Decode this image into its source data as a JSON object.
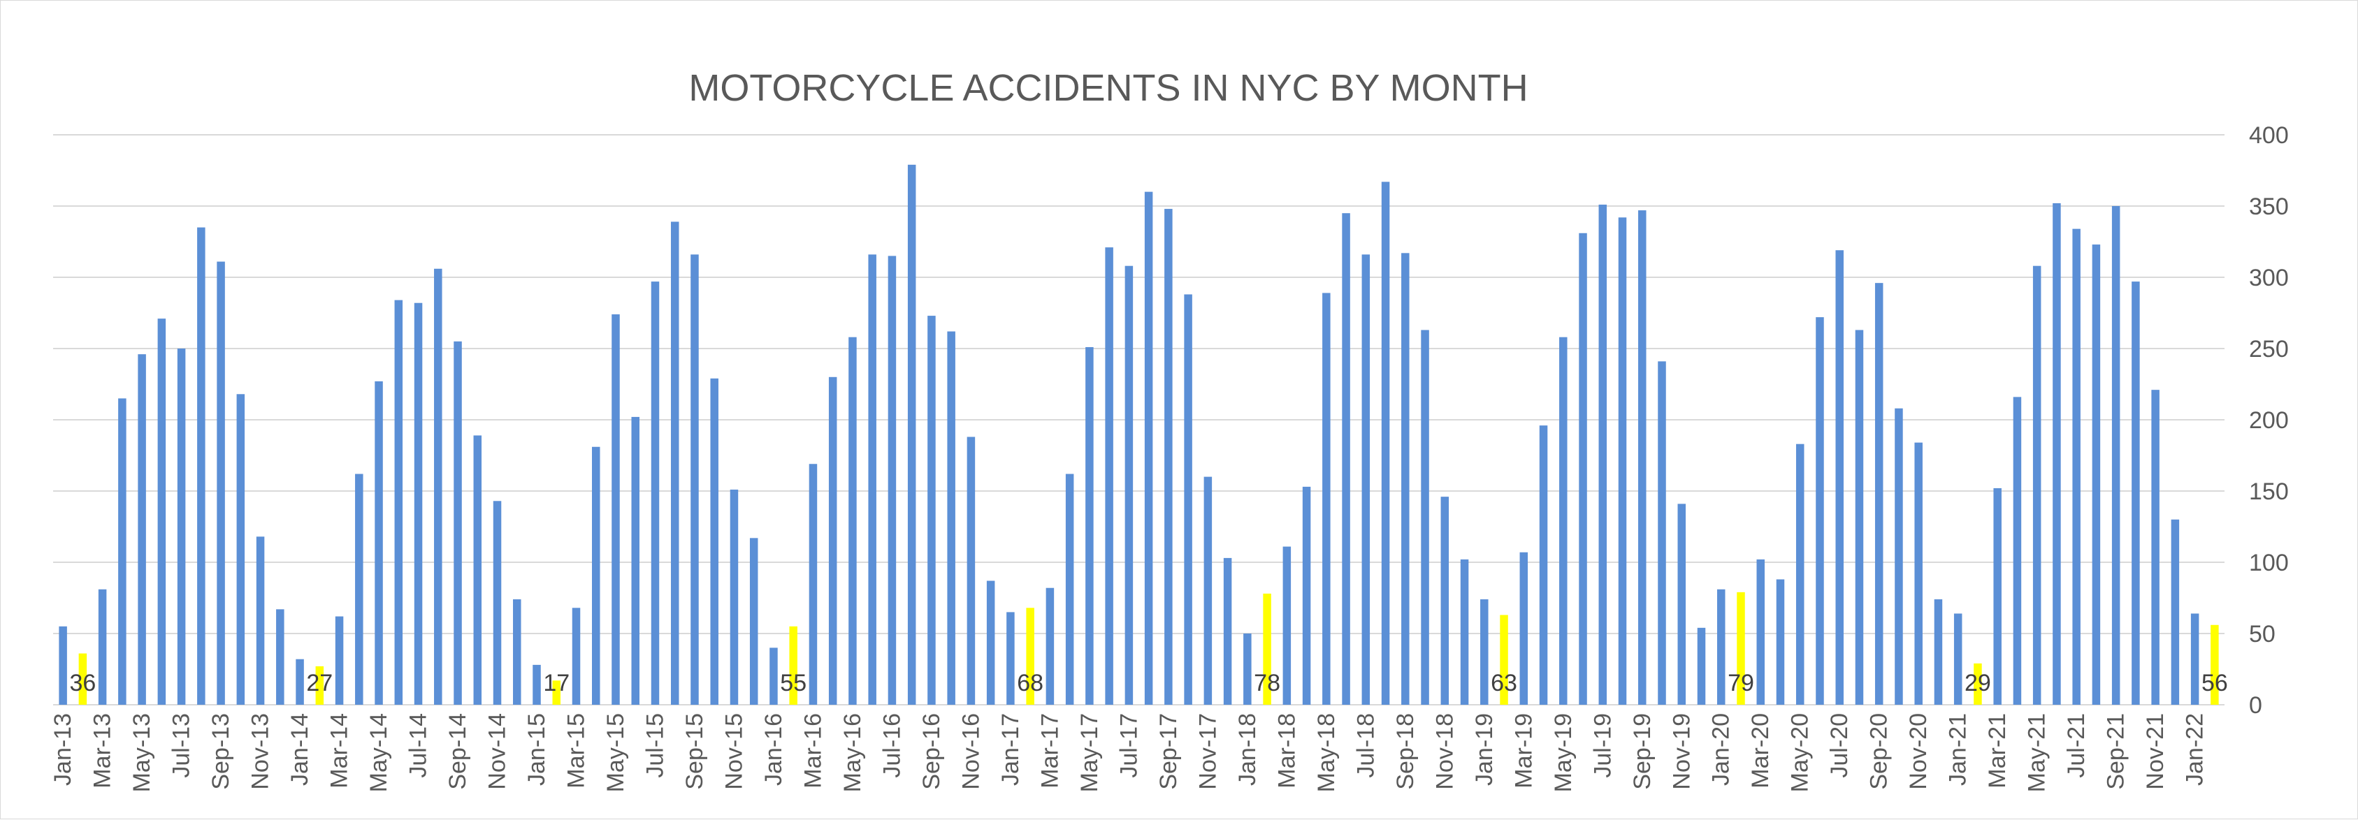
{
  "chart_data": {
    "type": "bar",
    "title": "MOTORCYCLE ACCIDENTS IN NYC BY MONTH",
    "xlabel": "",
    "ylabel": "",
    "ylim": [
      0,
      400
    ],
    "y_ticks": [
      0,
      50,
      100,
      150,
      200,
      250,
      300,
      350,
      400
    ],
    "y_axis_side": "right",
    "grid": true,
    "legend": "none",
    "colors": {
      "bar": "#5b8fd6",
      "highlight": "#ffff00",
      "grid": "#d9d9d9",
      "text": "#595959"
    },
    "categories": [
      "Jan-13",
      "Feb-13",
      "Mar-13",
      "Apr-13",
      "May-13",
      "Jun-13",
      "Jul-13",
      "Aug-13",
      "Sep-13",
      "Oct-13",
      "Nov-13",
      "Dec-13",
      "Jan-14",
      "Feb-14",
      "Mar-14",
      "Apr-14",
      "May-14",
      "Jun-14",
      "Jul-14",
      "Aug-14",
      "Sep-14",
      "Oct-14",
      "Nov-14",
      "Dec-14",
      "Jan-15",
      "Feb-15",
      "Mar-15",
      "Apr-15",
      "May-15",
      "Jun-15",
      "Jul-15",
      "Aug-15",
      "Sep-15",
      "Oct-15",
      "Nov-15",
      "Dec-15",
      "Jan-16",
      "Feb-16",
      "Mar-16",
      "Apr-16",
      "May-16",
      "Jun-16",
      "Jul-16",
      "Aug-16",
      "Sep-16",
      "Oct-16",
      "Nov-16",
      "Dec-16",
      "Jan-17",
      "Feb-17",
      "Mar-17",
      "Apr-17",
      "May-17",
      "Jun-17",
      "Jul-17",
      "Aug-17",
      "Sep-17",
      "Oct-17",
      "Nov-17",
      "Dec-17",
      "Jan-18",
      "Feb-18",
      "Mar-18",
      "Apr-18",
      "May-18",
      "Jun-18",
      "Jul-18",
      "Aug-18",
      "Sep-18",
      "Oct-18",
      "Nov-18",
      "Dec-18",
      "Jan-19",
      "Feb-19",
      "Mar-19",
      "Apr-19",
      "May-19",
      "Jun-19",
      "Jul-19",
      "Aug-19",
      "Sep-19",
      "Oct-19",
      "Nov-19",
      "Dec-19",
      "Jan-20",
      "Feb-20",
      "Mar-20",
      "Apr-20",
      "May-20",
      "Jun-20",
      "Jul-20",
      "Aug-20",
      "Sep-20",
      "Oct-20",
      "Nov-20",
      "Dec-20",
      "Jan-21",
      "Feb-21",
      "Mar-21",
      "Apr-21",
      "May-21",
      "Jun-21",
      "Jul-21",
      "Aug-21",
      "Sep-21",
      "Oct-21",
      "Nov-21",
      "Dec-21",
      "Jan-22",
      "Feb-22"
    ],
    "x_tick_labels": [
      "Jan-13",
      "Mar-13",
      "May-13",
      "Jul-13",
      "Sep-13",
      "Nov-13",
      "Jan-14",
      "Mar-14",
      "May-14",
      "Jul-14",
      "Sep-14",
      "Nov-14",
      "Jan-15",
      "Mar-15",
      "May-15",
      "Jul-15",
      "Sep-15",
      "Nov-15",
      "Jan-16",
      "Mar-16",
      "May-16",
      "Jul-16",
      "Sep-16",
      "Nov-16",
      "Jan-17",
      "Mar-17",
      "May-17",
      "Jul-17",
      "Sep-17",
      "Nov-17",
      "Jan-18",
      "Mar-18",
      "May-18",
      "Jul-18",
      "Sep-18",
      "Nov-18",
      "Jan-19",
      "Mar-19",
      "May-19",
      "Jul-19",
      "Sep-19",
      "Nov-19",
      "Jan-20",
      "Mar-20",
      "May-20",
      "Jul-20",
      "Sep-20",
      "Nov-20",
      "Jan-21",
      "Mar-21",
      "May-21",
      "Jul-21",
      "Sep-21",
      "Nov-21",
      "Jan-22"
    ],
    "values": [
      55,
      36,
      81,
      215,
      246,
      271,
      250,
      335,
      311,
      218,
      118,
      67,
      32,
      27,
      62,
      162,
      227,
      284,
      282,
      306,
      255,
      189,
      143,
      74,
      28,
      17,
      68,
      181,
      274,
      202,
      297,
      339,
      316,
      229,
      151,
      117,
      40,
      55,
      169,
      230,
      258,
      316,
      315,
      379,
      273,
      262,
      188,
      87,
      65,
      68,
      82,
      162,
      251,
      321,
      308,
      360,
      348,
      288,
      160,
      103,
      50,
      78,
      111,
      153,
      289,
      345,
      316,
      367,
      317,
      263,
      146,
      102,
      74,
      63,
      107,
      196,
      258,
      331,
      351,
      342,
      347,
      241,
      141,
      54,
      81,
      79,
      102,
      88,
      183,
      272,
      319,
      263,
      296,
      208,
      184,
      74,
      64,
      29,
      152,
      216,
      308,
      352,
      334,
      323,
      350,
      297,
      221,
      130,
      64,
      56
    ],
    "highlighted_indices": [
      1,
      13,
      25,
      37,
      49,
      61,
      73,
      85,
      97,
      109
    ],
    "data_labels": [
      {
        "index": 1,
        "text": "36"
      },
      {
        "index": 13,
        "text": "27"
      },
      {
        "index": 25,
        "text": "17"
      },
      {
        "index": 37,
        "text": "55"
      },
      {
        "index": 49,
        "text": "68"
      },
      {
        "index": 61,
        "text": "78"
      },
      {
        "index": 73,
        "text": "63"
      },
      {
        "index": 85,
        "text": "79"
      },
      {
        "index": 97,
        "text": "29"
      },
      {
        "index": 109,
        "text": "56"
      }
    ]
  }
}
